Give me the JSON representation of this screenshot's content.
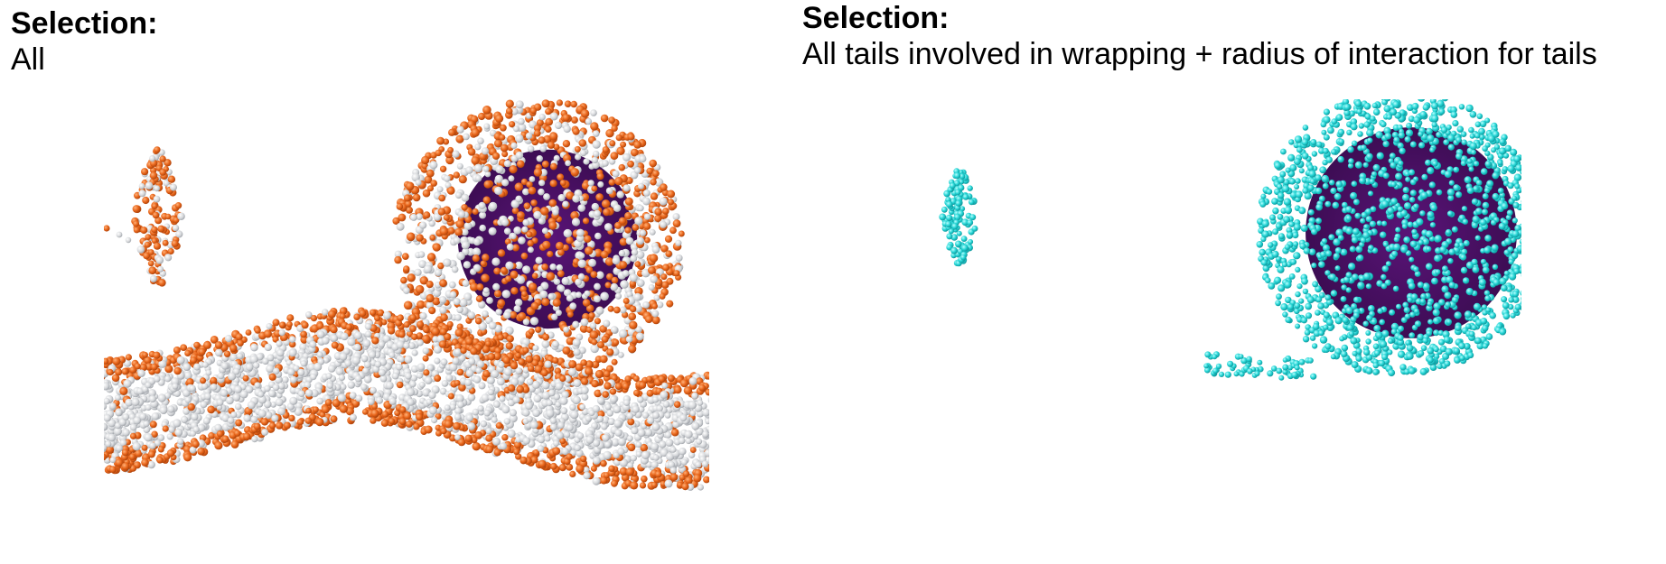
{
  "left_panel": {
    "selection_heading": "Selection:",
    "selection_value": "All",
    "colors": {
      "headgroup": "#e8651a",
      "tail": "#d6d8db",
      "interior": "#4a1060"
    }
  },
  "right_panel": {
    "selection_heading": "Selection:",
    "selection_value": "All tails involved in wrapping + radius of interaction for tails",
    "colors": {
      "tail": "#22d3d3",
      "interior": "#4a1060"
    }
  }
}
